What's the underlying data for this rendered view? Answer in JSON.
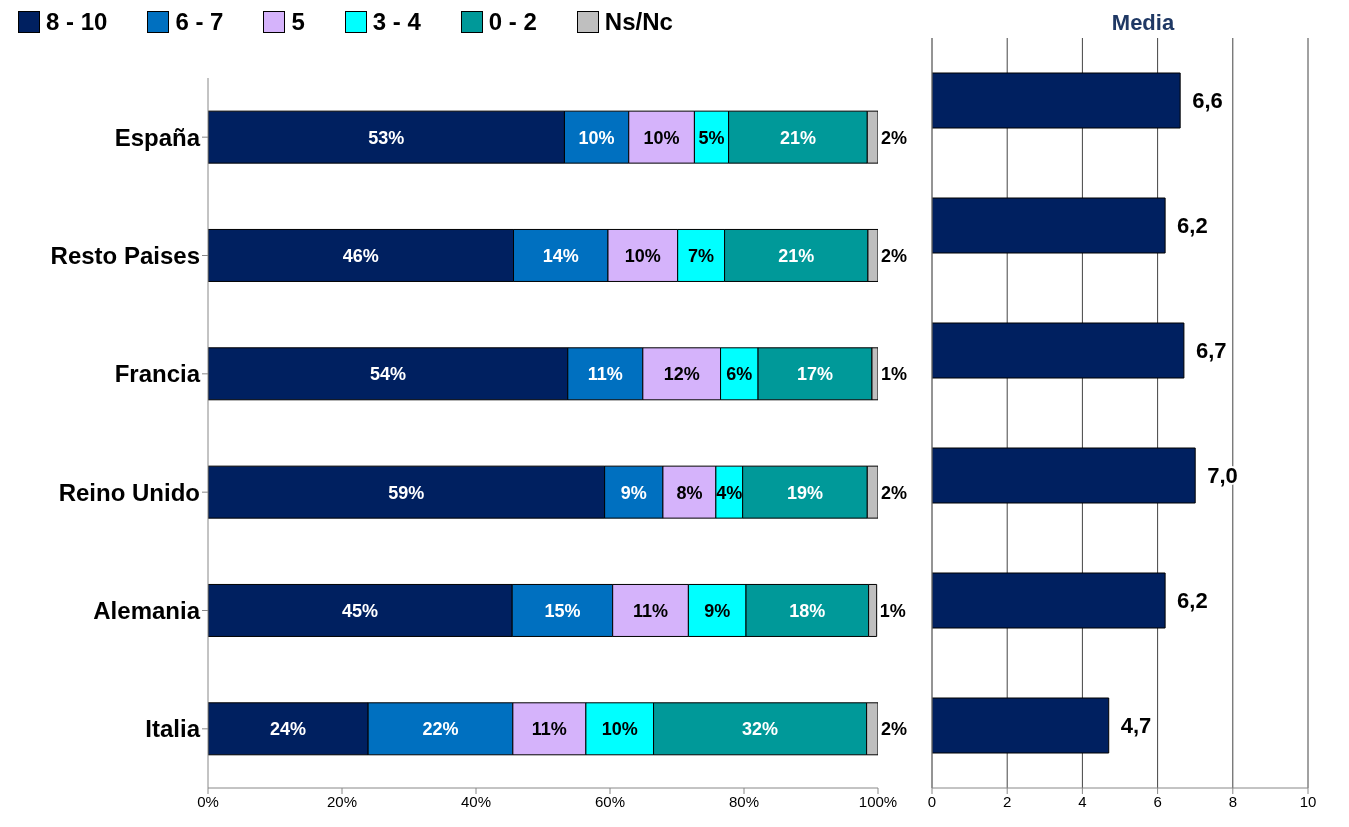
{
  "chart_data": [
    {
      "type": "bar",
      "orientation": "horizontal",
      "stacked": true,
      "categories": [
        "España",
        "Resto Paises",
        "Francia",
        "Reino Unido",
        "Alemania",
        "Italia"
      ],
      "series": [
        {
          "name": "8 - 10",
          "color": "#002060",
          "values": [
            53.2,
            45.6,
            53.7,
            59.2,
            45.4,
            23.9
          ],
          "value_labels": [
            "53%",
            "46%",
            "54%",
            "59%",
            "45%",
            "24%"
          ]
        },
        {
          "name": "6 - 7",
          "color": "#0070c0",
          "values": [
            9.6,
            14.1,
            11.2,
            8.7,
            15.0,
            21.6
          ],
          "value_labels": [
            "10%",
            "14%",
            "11%",
            "9%",
            "15%",
            "22%"
          ]
        },
        {
          "name": "5",
          "color": "#d5b3fb",
          "values": [
            9.8,
            10.4,
            11.6,
            7.9,
            11.3,
            10.9
          ],
          "value_labels": [
            "10%",
            "10%",
            "12%",
            "8%",
            "11%",
            "11%"
          ]
        },
        {
          "name": "3 - 4",
          "color": "#00ffff",
          "values": [
            5.1,
            7.0,
            5.6,
            4.0,
            8.6,
            10.1
          ],
          "value_labels": [
            "5%",
            "7%",
            "6%",
            "4%",
            "9%",
            "10%"
          ]
        },
        {
          "name": "0 - 2",
          "color": "#009999",
          "values": [
            20.7,
            21.4,
            17.0,
            18.6,
            18.3,
            31.8
          ],
          "value_labels": [
            "21%",
            "21%",
            "17%",
            "19%",
            "18%",
            "32%"
          ]
        },
        {
          "name": "Ns/Nc",
          "color": "#bfbfbf",
          "values": [
            1.7,
            1.6,
            0.9,
            1.7,
            1.2,
            1.8
          ],
          "value_labels": [
            "2%",
            "2%",
            "1%",
            "2%",
            "1%",
            "2%"
          ]
        }
      ],
      "xlim": [
        0,
        100
      ],
      "xticks": [
        {
          "value": 0,
          "label": "0%"
        },
        {
          "value": 20,
          "label": "20%"
        },
        {
          "value": 40,
          "label": "40%"
        },
        {
          "value": 60,
          "label": "60%"
        },
        {
          "value": 80,
          "label": "80%"
        },
        {
          "value": 100,
          "label": "100%"
        }
      ],
      "grid": false,
      "legend": "top"
    },
    {
      "type": "bar",
      "orientation": "horizontal",
      "title": "Media",
      "categories": [
        null,
        null,
        null,
        null,
        null,
        null
      ],
      "values": [
        6.6,
        6.2,
        6.7,
        7.0,
        6.2,
        4.7
      ],
      "value_labels": [
        "6,6",
        "6,2",
        "6,7",
        "7,0",
        "6,2",
        "4,7"
      ],
      "color": "#002060",
      "xlim": [
        0,
        10
      ],
      "xticks": [
        0,
        2,
        4,
        6,
        8,
        10
      ],
      "grid": "x"
    }
  ]
}
